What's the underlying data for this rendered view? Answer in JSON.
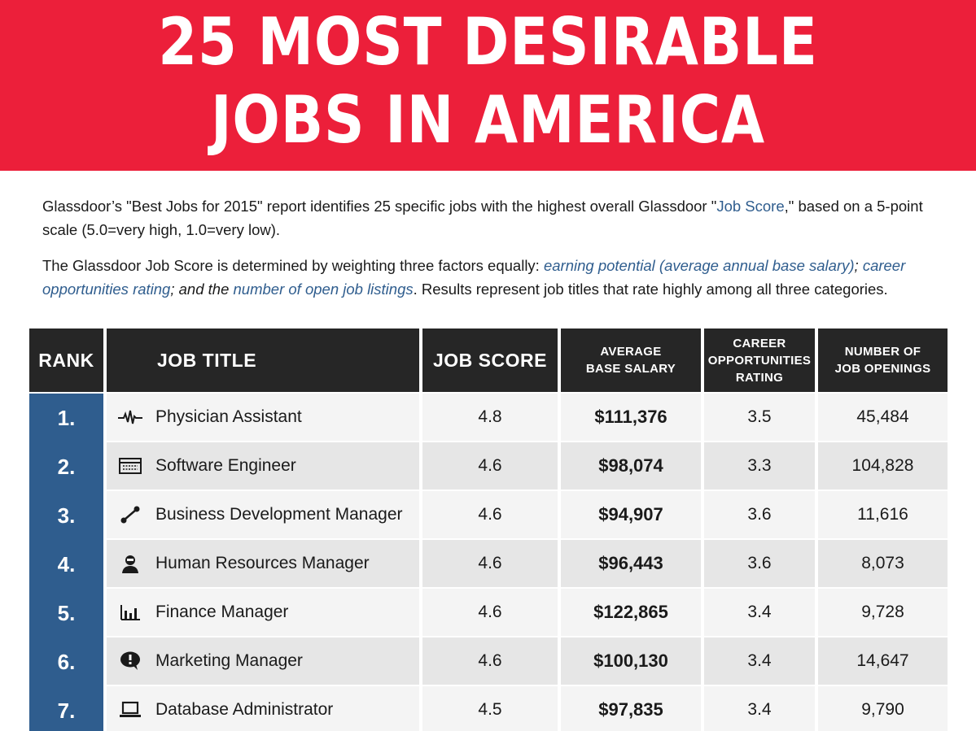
{
  "header": {
    "title_line1": "25 MOST DESIRABLE",
    "title_line2": "JOBS IN AMERICA"
  },
  "intro": {
    "p1_a": "Glassdoor’s \"Best Jobs for 2015\" report identifies 25 specific jobs with the highest overall Glassdoor \"",
    "p1_link": "Job Score",
    "p1_b": ",\" based on a 5-point scale (5.0=very high, 1.0=very low).",
    "p2_a": "The Glassdoor Job Score is determined by weighting three factors equally: ",
    "p2_factor1": "earning potential (average annual base salary)",
    "p2_sep": "; ",
    "p2_factor2": "career opportunities rating",
    "p2_and": "; and the ",
    "p2_factor3": "number of open job listings",
    "p2_b": ". Results represent job titles that rate highly among all three categories."
  },
  "colors": {
    "banner": "#ec1f3a",
    "rank_column": "#2f5d8e",
    "header_bg": "#262626",
    "link": "#2f5d8e"
  },
  "chart_data": {
    "type": "table",
    "columns": [
      "RANK",
      "JOB TITLE",
      "JOB SCORE",
      "AVERAGE BASE SALARY",
      "CAREER OPPORTUNITIES RATING",
      "NUMBER OF JOB OPENINGS"
    ],
    "header_lines": {
      "rank": [
        "RANK"
      ],
      "job_title": [
        "JOB TITLE"
      ],
      "job_score": [
        "JOB SCORE"
      ],
      "salary": [
        "AVERAGE",
        "BASE SALARY"
      ],
      "career": [
        "CAREER",
        "OPPORTUNITIES",
        "RATING"
      ],
      "openings": [
        "NUMBER OF",
        "JOB OPENINGS"
      ]
    },
    "rows": [
      {
        "rank": "1.",
        "icon": "heartbeat-icon",
        "title": "Physician Assistant",
        "score": "4.8",
        "salary": "$111,376",
        "career": "3.5",
        "openings": "45,484"
      },
      {
        "rank": "2.",
        "icon": "code-window-icon",
        "title": "Software Engineer",
        "score": "4.6",
        "salary": "$98,074",
        "career": "3.3",
        "openings": "104,828"
      },
      {
        "rank": "3.",
        "icon": "connection-icon",
        "title": "Business Development Manager",
        "score": "4.6",
        "salary": "$94,907",
        "career": "3.6",
        "openings": "11,616"
      },
      {
        "rank": "4.",
        "icon": "person-icon",
        "title": "Human Resources Manager",
        "score": "4.6",
        "salary": "$96,443",
        "career": "3.6",
        "openings": "8,073"
      },
      {
        "rank": "5.",
        "icon": "bar-chart-icon",
        "title": "Finance Manager",
        "score": "4.6",
        "salary": "$122,865",
        "career": "3.4",
        "openings": "9,728"
      },
      {
        "rank": "6.",
        "icon": "speech-bubble-icon",
        "title": "Marketing Manager",
        "score": "4.6",
        "salary": "$100,130",
        "career": "3.4",
        "openings": "14,647"
      },
      {
        "rank": "7.",
        "icon": "laptop-icon",
        "title": "Database Administrator",
        "score": "4.5",
        "salary": "$97,835",
        "career": "3.4",
        "openings": "9,790"
      }
    ]
  }
}
